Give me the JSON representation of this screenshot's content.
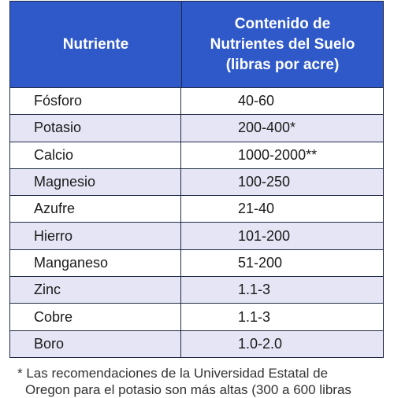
{
  "table": {
    "header": [
      "Nutriente",
      [
        "Contenido de",
        "Nutrientes del Suelo",
        "(libras por acre)"
      ]
    ],
    "rows": [
      [
        "Fósforo",
        "40-60"
      ],
      [
        "Potasio",
        "200-400*"
      ],
      [
        "Calcio",
        "1000-2000**"
      ],
      [
        "Magnesio",
        "100-250"
      ],
      [
        "Azufre",
        "21-40"
      ],
      [
        "Hierro",
        "101-200"
      ],
      [
        "Manganeso",
        "51-200"
      ],
      [
        "Zinc",
        "1.1-3"
      ],
      [
        "Cobre",
        "1.1-3"
      ],
      [
        "Boro",
        "1.0-2.0"
      ]
    ]
  },
  "footnote": [
    "* Las recomendaciones de la Universidad Estatal de",
    "Oregon para el potasio son más altas (300 a 600 libras"
  ]
}
